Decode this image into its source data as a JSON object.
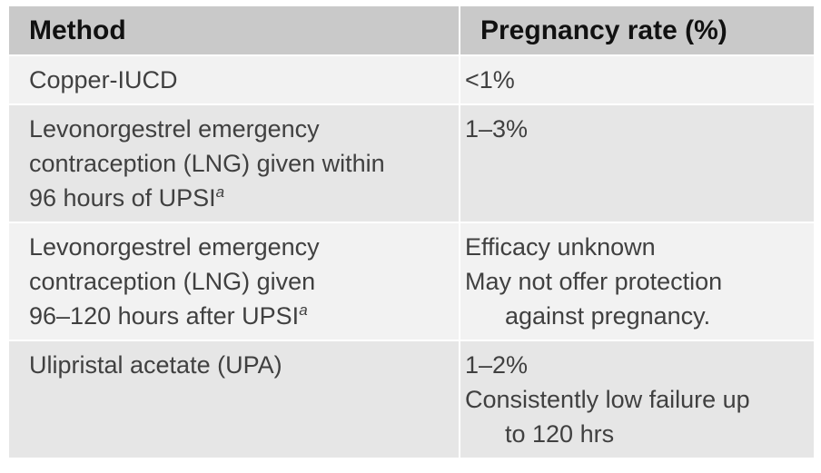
{
  "colors": {
    "header_bg": "#c9c9c9",
    "row_light_bg": "#f2f2f2",
    "row_dark_bg": "#e6e6e6",
    "header_text": "#111111",
    "body_text": "#404040",
    "separator": "#ffffff"
  },
  "chart_data": {
    "type": "table",
    "columns": [
      "Method",
      "Pregnancy rate (%)"
    ],
    "rows": [
      [
        "Copper-IUCD",
        "<1%"
      ],
      [
        "Levonorgestrel emergency contraception (LNG) given within 96 hours of UPSIᵃ",
        "1–3%"
      ],
      [
        "Levonorgestrel emergency contraception (LNG) given 96–120 hours after UPSIᵃ",
        "Efficacy unknown. May not offer protection against pregnancy."
      ],
      [
        "Ulipristal acetate (UPA)",
        "1–2%. Consistently low failure up to 120 hrs"
      ]
    ]
  },
  "table": {
    "header": {
      "method": "Method",
      "rate": "Pregnancy rate (%)"
    },
    "rows": [
      {
        "method_lines": [
          "Copper-IUCD"
        ],
        "rate_lines": [
          "<1%"
        ]
      },
      {
        "method_lines": [
          "Levonorgestrel emergency",
          "contraception (LNG) given within",
          "96 hours of UPSI"
        ],
        "method_sup": "a",
        "rate_lines": [
          "1–3%"
        ]
      },
      {
        "method_lines": [
          "Levonorgestrel emergency",
          "contraception (LNG) given",
          "96–120 hours after UPSI"
        ],
        "method_sup": "a",
        "rate_lines": [
          "Efficacy unknown",
          "May not offer protection",
          "against pregnancy."
        ]
      },
      {
        "method_lines": [
          "Ulipristal acetate (UPA)"
        ],
        "rate_lines": [
          "1–2%",
          "Consistently low failure up",
          "to 120 hrs"
        ]
      }
    ]
  }
}
